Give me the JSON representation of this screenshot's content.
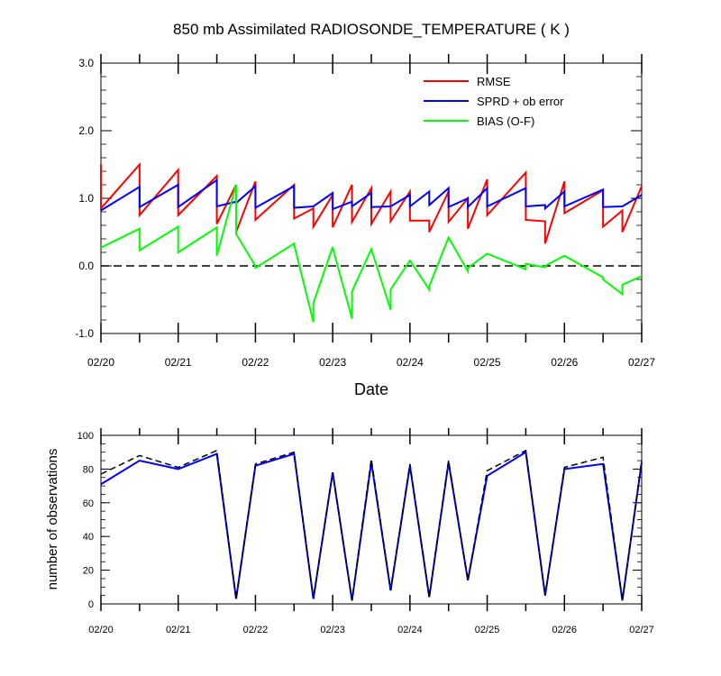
{
  "chart_data": [
    {
      "type": "line",
      "title": "850 mb Assimilated RADIOSONDE_TEMPERATURE ( K )",
      "xlabel": "Date",
      "ylabel": "",
      "x_ticks": [
        "02/20",
        "02/21",
        "02/22",
        "02/23",
        "02/24",
        "02/25",
        "02/26",
        "02/27"
      ],
      "xlim": [
        0,
        7
      ],
      "ylim": [
        -1.0,
        3.0
      ],
      "y_ticks": [
        "-1.0",
        "0.0",
        "1.0",
        "2.0",
        "3.0"
      ],
      "y_tick_values": [
        -1.0,
        0.0,
        1.0,
        2.0,
        3.0
      ],
      "reference_line": 0.0,
      "legend_position": "top-right",
      "series": [
        {
          "name": "RMSE",
          "color": "#ff0000",
          "x": [
            0,
            0,
            0.5,
            0.5,
            1,
            1,
            1.5,
            1.5,
            1.75,
            1.75,
            2,
            2,
            2.5,
            2.5,
            2.75,
            2.75,
            3,
            3,
            3.25,
            3.25,
            3.5,
            3.5,
            3.75,
            3.75,
            4,
            4,
            4.25,
            4.25,
            4.5,
            4.5,
            4.75,
            4.75,
            5,
            5,
            5.5,
            5.5,
            5.75,
            5.75,
            6,
            6,
            6.5,
            6.5,
            6.75,
            6.75,
            7
          ],
          "y": [
            1.5,
            0.85,
            1.5,
            0.75,
            1.42,
            0.75,
            1.33,
            0.62,
            1.2,
            0.5,
            1.25,
            0.68,
            1.2,
            0.7,
            0.85,
            0.58,
            1.05,
            0.57,
            1.2,
            0.65,
            1.15,
            0.62,
            1.1,
            0.66,
            1.1,
            0.67,
            0.67,
            0.5,
            1.1,
            0.65,
            1.0,
            0.55,
            1.28,
            0.75,
            1.38,
            0.68,
            0.66,
            0.33,
            1.25,
            0.78,
            1.12,
            0.58,
            0.82,
            0.5,
            1.18
          ]
        },
        {
          "name": "SPRD + ob error",
          "color": "#0000ff",
          "x": [
            0,
            0.5,
            0.5,
            1,
            1,
            1.5,
            1.5,
            1.75,
            1.75,
            2,
            2,
            2.5,
            2.5,
            2.75,
            2.75,
            3,
            3,
            3.25,
            3.25,
            3.5,
            3.5,
            3.75,
            3.75,
            4,
            4,
            4.25,
            4.25,
            4.5,
            4.5,
            4.75,
            4.75,
            5,
            5,
            5.5,
            5.5,
            5.75,
            5.75,
            6,
            6,
            6.5,
            6.5,
            6.75,
            6.75,
            7
          ],
          "y": [
            0.82,
            1.17,
            0.87,
            1.2,
            0.87,
            1.27,
            0.88,
            0.95,
            0.93,
            1.18,
            0.86,
            1.18,
            0.86,
            0.88,
            0.88,
            1.08,
            0.84,
            0.95,
            0.88,
            1.08,
            0.87,
            0.88,
            0.88,
            1.05,
            0.88,
            1.1,
            0.9,
            1.15,
            0.87,
            1.0,
            0.87,
            1.15,
            0.88,
            1.15,
            0.88,
            0.9,
            0.85,
            1.1,
            0.88,
            1.13,
            0.87,
            0.88,
            0.88,
            1.05
          ]
        },
        {
          "name": "BIAS (O-F)",
          "color": "#00ff00",
          "x": [
            0,
            0.5,
            0.5,
            1,
            1,
            1.5,
            1.5,
            1.75,
            1.75,
            2,
            2,
            2.5,
            2.5,
            2.75,
            2.75,
            3,
            3,
            3.25,
            3.25,
            3.5,
            3.5,
            3.75,
            3.75,
            4,
            4,
            4.25,
            4.25,
            4.5,
            4.5,
            4.75,
            4.75,
            5,
            5,
            5.5,
            5.5,
            5.75,
            5.75,
            6,
            6,
            6.5,
            6.5,
            6.75,
            6.75,
            7
          ],
          "y": [
            0.27,
            0.55,
            0.23,
            0.58,
            0.2,
            0.57,
            0.15,
            1.2,
            0.47,
            0.0,
            -0.03,
            0.33,
            0.32,
            -0.83,
            -0.55,
            0.28,
            0.27,
            -0.78,
            -0.38,
            0.25,
            0.25,
            -0.65,
            -0.35,
            0.08,
            0.08,
            -0.35,
            -0.3,
            0.42,
            0.42,
            -0.08,
            -0.03,
            0.18,
            0.18,
            -0.05,
            0.03,
            -0.02,
            0.0,
            0.15,
            0.15,
            -0.17,
            -0.2,
            -0.42,
            -0.28,
            -0.15
          ]
        }
      ]
    },
    {
      "type": "line",
      "title": "",
      "xlabel": "",
      "ylabel": "number of observations",
      "x_ticks": [
        "02/20",
        "02/21",
        "02/22",
        "02/23",
        "02/24",
        "02/25",
        "02/26",
        "02/27"
      ],
      "xlim": [
        0,
        7
      ],
      "ylim": [
        0,
        100
      ],
      "y_ticks": [
        "0",
        "20",
        "40",
        "60",
        "80",
        "100"
      ],
      "y_tick_values": [
        0,
        20,
        40,
        60,
        80,
        100
      ],
      "series": [
        {
          "color": "#0000ff",
          "style": "solid",
          "x": [
            0,
            0.5,
            1,
            1.5,
            1.75,
            2,
            2.5,
            2.75,
            3,
            3.25,
            3.5,
            3.75,
            4,
            4.25,
            4.5,
            4.75,
            5,
            5.5,
            5.75,
            6,
            6.5,
            6.75,
            7
          ],
          "y": [
            71,
            85,
            80,
            89,
            3,
            82,
            89,
            3,
            78,
            2,
            84,
            8,
            82,
            4,
            84,
            14,
            76,
            90,
            5,
            80,
            83,
            2,
            84
          ]
        },
        {
          "color": "#000000",
          "style": "dashed",
          "x": [
            0,
            0.5,
            1,
            1.5,
            1.75,
            2,
            2.5,
            2.75,
            3,
            3.25,
            3.5,
            3.75,
            4,
            4.25,
            4.5,
            4.75,
            5,
            5.5,
            5.75,
            6,
            6.5,
            6.75,
            7
          ],
          "y": [
            77,
            88,
            81,
            91,
            3,
            83,
            90,
            3,
            78,
            2,
            86,
            8,
            83,
            4,
            85,
            14,
            79,
            91,
            5,
            81,
            87,
            2,
            85
          ]
        }
      ]
    }
  ]
}
